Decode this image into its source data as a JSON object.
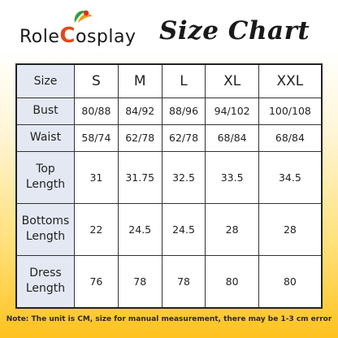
{
  "header": {
    "brand_prefix": "Role",
    "brand_c": "C",
    "brand_suffix": "osplay",
    "title": "Size Chart"
  },
  "table": {
    "corner_label": "Size",
    "columns": [
      "S",
      "M",
      "L",
      "XL",
      "XXL"
    ],
    "rows": [
      {
        "label_lines": [
          "Bust"
        ],
        "values": [
          "80/88",
          "84/92",
          "88/96",
          "94/102",
          "100/108"
        ]
      },
      {
        "label_lines": [
          "Waist"
        ],
        "values": [
          "58/74",
          "62/78",
          "62/78",
          "68/84",
          "68/84"
        ]
      },
      {
        "label_lines": [
          "Top",
          "Length"
        ],
        "values": [
          "31",
          "31.75",
          "32.5",
          "33.5",
          "34.5"
        ]
      },
      {
        "label_lines": [
          "Bottoms",
          "Length"
        ],
        "values": [
          "22",
          "24.5",
          "24.5",
          "28",
          "28"
        ]
      },
      {
        "label_lines": [
          "Dress",
          "Length"
        ],
        "values": [
          "76",
          "78",
          "78",
          "80",
          "80"
        ]
      }
    ]
  },
  "note": "Note: The unit is CM, size for manual measurement, there may be 1-3 cm error",
  "colors": {
    "header_cell": "#e4e8f3",
    "brand_accent": "#e04a1a",
    "background_bottom": "#ffc21e"
  }
}
